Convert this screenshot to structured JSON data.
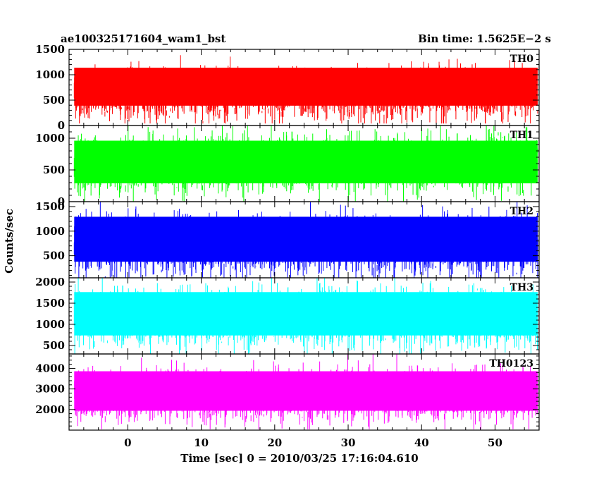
{
  "chart_data": {
    "type": "line",
    "title": "ae100325171604_wam1_bst",
    "subtitle": "Bin time: 1.5625E−2 s",
    "xlabel": "Time [sec] 0 = 2010/03/25 17:16:04.610",
    "ylabel": "Counts/sec",
    "xlim": [
      -8,
      56
    ],
    "x_ticks": [
      0,
      10,
      20,
      30,
      40,
      50
    ],
    "x_tick_labels": [
      "0",
      "10",
      "20",
      "30",
      "40",
      "50"
    ],
    "grid": false,
    "panels": [
      {
        "name": "TH0",
        "color": "#ff0000",
        "ylim": [
          0,
          1500
        ],
        "y_ticks": [
          0,
          500,
          1000,
          1500
        ],
        "y_tick_labels": [
          "0",
          "500",
          "1000",
          "1500"
        ],
        "mean": 620,
        "typical_range": [
          180,
          1350
        ]
      },
      {
        "name": "TH1",
        "color": "#00ff00",
        "ylim": [
          0,
          1200
        ],
        "y_ticks": [
          0,
          500,
          1000
        ],
        "y_tick_labels": [
          "0",
          "500",
          "1000"
        ],
        "mean": 600,
        "typical_range": [
          100,
          1150
        ]
      },
      {
        "name": "TH2",
        "color": "#0000ff",
        "ylim": [
          50,
          1600
        ],
        "y_ticks": [
          500,
          1000,
          1500
        ],
        "y_tick_labels": [
          "500",
          "1000",
          "1500"
        ],
        "mean": 720,
        "typical_range": [
          120,
          1550
        ]
      },
      {
        "name": "TH3",
        "color": "#00ffff",
        "ylim": [
          300,
          2100
        ],
        "y_ticks": [
          500,
          1000,
          1500,
          2000
        ],
        "y_tick_labels": [
          "500",
          "1000",
          "1500",
          "2000"
        ],
        "mean": 1150,
        "typical_range": [
          450,
          2050
        ]
      },
      {
        "name": "TH0123",
        "color": "#ff00ff",
        "ylim": [
          1000,
          4700
        ],
        "y_ticks": [
          2000,
          3000,
          4000
        ],
        "y_tick_labels": [
          "2000",
          "3000",
          "4000"
        ],
        "mean": 2700,
        "typical_range": [
          1400,
          4400
        ]
      }
    ]
  }
}
